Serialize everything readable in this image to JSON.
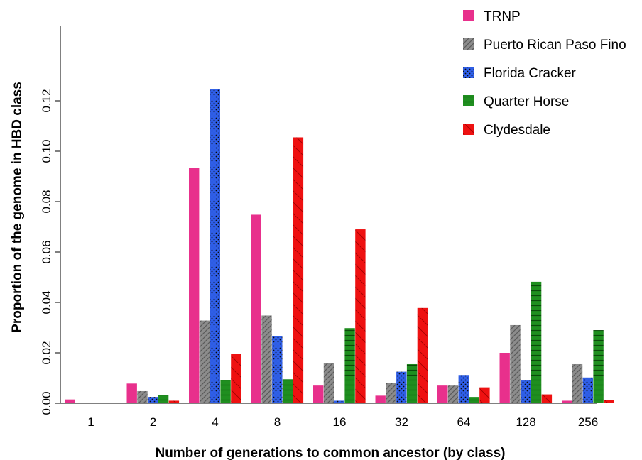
{
  "chart_data": {
    "type": "bar",
    "xlabel": "Number of generations to common ancestor (by class)",
    "ylabel": "Proportion of the genome in HBD class",
    "categories": [
      "1",
      "2",
      "4",
      "8",
      "16",
      "32",
      "64",
      "128",
      "256"
    ],
    "ylim": [
      0,
      0.124
    ],
    "yticks": [
      "0.00",
      "0.02",
      "0.04",
      "0.06",
      "0.08",
      "0.10",
      "0.12"
    ],
    "grid": false,
    "legend_position": "top-right",
    "series": [
      {
        "name": "TRNP",
        "color": "#e8308c",
        "pattern": "solid",
        "values": [
          0.0015,
          0.0078,
          0.0935,
          0.0748,
          0.007,
          0.003,
          0.007,
          0.02,
          0.001
        ]
      },
      {
        "name": "Puerto Rican Paso Fino",
        "color": "#8c8c8c",
        "pattern": "diagonal-hatch",
        "values": [
          0,
          0.0048,
          0.0328,
          0.0348,
          0.016,
          0.008,
          0.007,
          0.031,
          0.0155
        ]
      },
      {
        "name": "Florida Cracker",
        "color": "#2f5fe8",
        "pattern": "dots",
        "values": [
          0,
          0.0025,
          0.1245,
          0.0265,
          0.001,
          0.0125,
          0.0112,
          0.009,
          0.0102
        ]
      },
      {
        "name": "Quarter Horse",
        "color": "#1f8f1f",
        "pattern": "horizontal-lines",
        "values": [
          0,
          0.0032,
          0.0092,
          0.0095,
          0.0298,
          0.0155,
          0.0025,
          0.0482,
          0.029
        ]
      },
      {
        "name": "Clydesdale",
        "color": "#ee1111",
        "pattern": "sparse-diagonal",
        "values": [
          0,
          0.001,
          0.0195,
          0.1055,
          0.069,
          0.0378,
          0.0063,
          0.0035,
          0.0012
        ]
      }
    ]
  }
}
